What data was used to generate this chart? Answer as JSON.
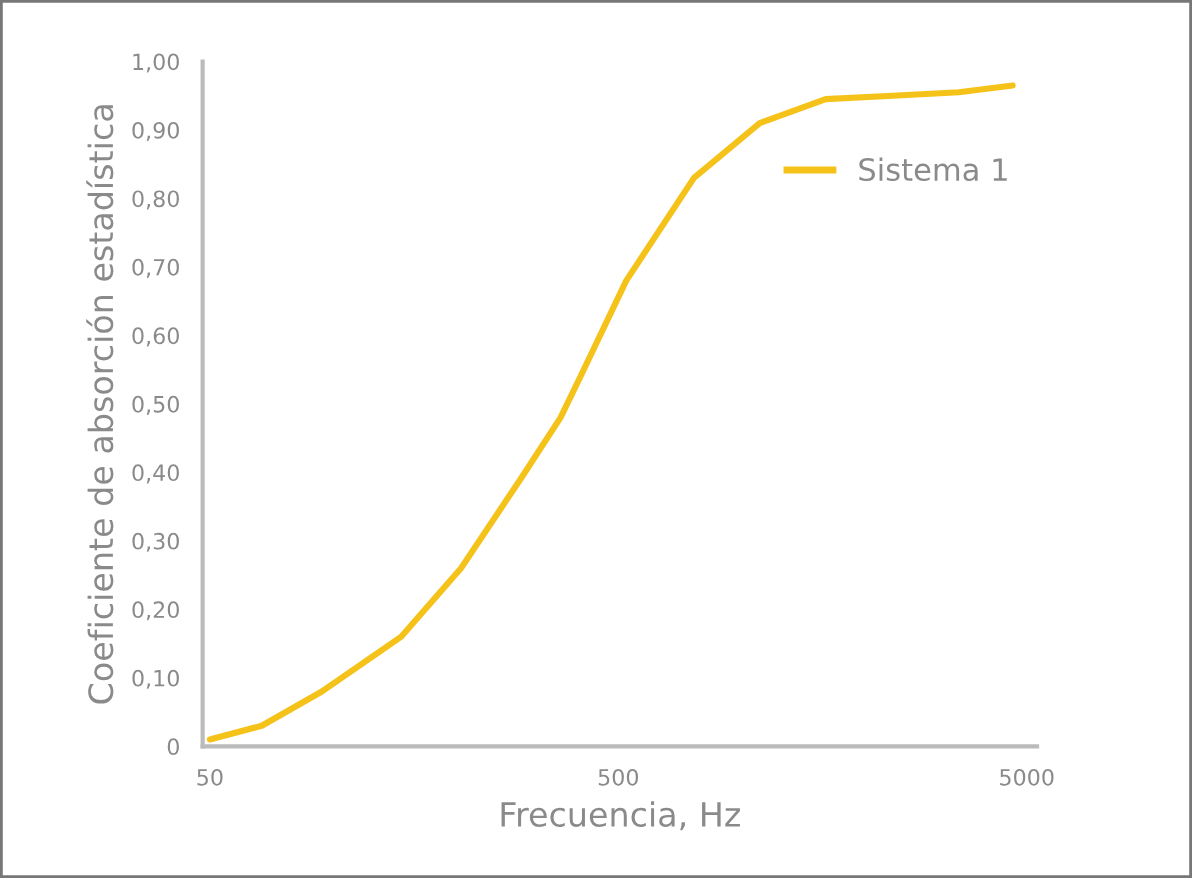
{
  "chart_data": {
    "type": "line",
    "xlabel": "Frecuencia, Hz",
    "ylabel": "Coeficiente de absorción estadística",
    "log": "x",
    "x": [
      50,
      67,
      94,
      147,
      206,
      288,
      361,
      404,
      523,
      766,
      1110,
      1610,
      2350,
      3410,
      4620
    ],
    "series": [
      {
        "name": "Sistema 1",
        "color": "#f5c21a",
        "values": [
          0.01,
          0.03,
          0.08,
          0.16,
          0.26,
          0.39,
          0.48,
          0.54,
          0.68,
          0.83,
          0.91,
          0.945,
          0.95,
          0.955,
          0.965
        ]
      }
    ],
    "xlim": [
      48,
      5300
    ],
    "xticks": [
      50,
      500,
      5000
    ],
    "ylim": [
      0,
      1.0
    ],
    "yticks": [
      0,
      {
        "value": 0.1,
        "label": "0,10"
      },
      {
        "value": 0.2,
        "label": "0,20"
      },
      {
        "value": 0.3,
        "label": "0,30"
      },
      {
        "value": 0.4,
        "label": "0,40"
      },
      {
        "value": 0.5,
        "label": "0,50"
      },
      {
        "value": 0.6,
        "label": "0,60"
      },
      {
        "value": 0.7,
        "label": "0,70"
      },
      {
        "value": 0.8,
        "label": "0,80"
      },
      {
        "value": 0.9,
        "label": "0,90"
      },
      {
        "value": 1.0,
        "label": "1,00"
      }
    ],
    "grid": false,
    "legend": "top right",
    "marker": "none",
    "line_style": "solid"
  }
}
